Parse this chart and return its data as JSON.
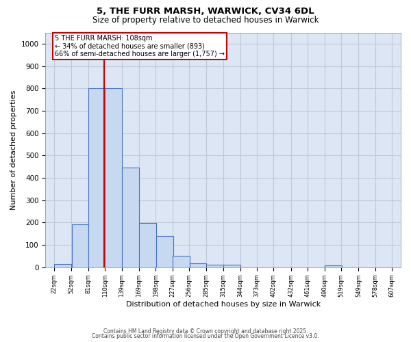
{
  "title1": "5, THE FURR MARSH, WARWICK, CV34 6DL",
  "title2": "Size of property relative to detached houses in Warwick",
  "xlabel": "Distribution of detached houses by size in Warwick",
  "ylabel": "Number of detached properties",
  "bar_edges": [
    22,
    52,
    81,
    110,
    139,
    169,
    198,
    227,
    256,
    285,
    315,
    344,
    373,
    402,
    432,
    461,
    490,
    519,
    549,
    578,
    607
  ],
  "bar_heights": [
    15,
    193,
    800,
    800,
    447,
    198,
    140,
    50,
    18,
    12,
    12,
    0,
    0,
    0,
    0,
    0,
    8,
    0,
    0,
    0,
    0
  ],
  "bar_color": "#c6d9f1",
  "bar_edgecolor": "#4472c4",
  "ylim_max": 1050,
  "yticks": [
    0,
    100,
    200,
    300,
    400,
    500,
    600,
    700,
    800,
    900,
    1000
  ],
  "property_line_x": 108,
  "property_line_color": "#cc0000",
  "annotation_line1": "5 THE FURR MARSH: 108sqm",
  "annotation_line2": "← 34% of detached houses are smaller (893)",
  "annotation_line3": "66% of semi-detached houses are larger (1,757) →",
  "annotation_box_color": "#ffffff",
  "annotation_border_color": "#cc0000",
  "grid_color": "#c0c8d8",
  "background_color": "#dce6f5",
  "footer1": "Contains HM Land Registry data © Crown copyright and database right 2025.",
  "footer2": "Contains public sector information licensed under the Open Government Licence v3.0."
}
